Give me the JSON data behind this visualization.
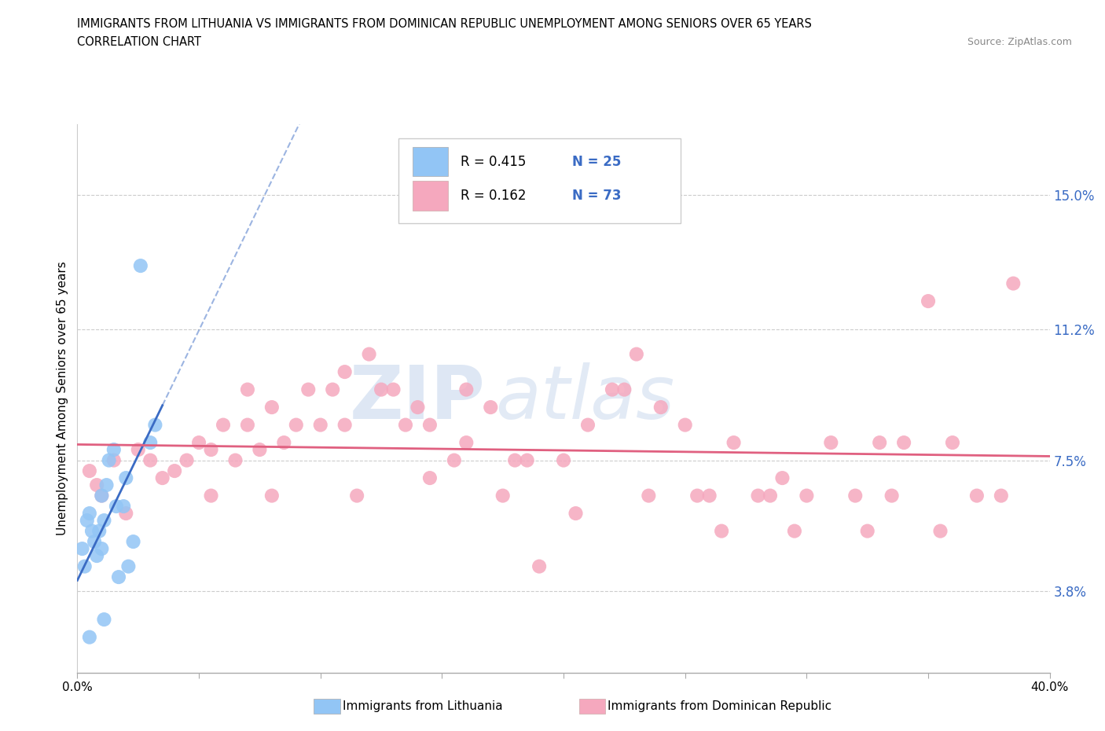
{
  "title_line1": "IMMIGRANTS FROM LITHUANIA VS IMMIGRANTS FROM DOMINICAN REPUBLIC UNEMPLOYMENT AMONG SENIORS OVER 65 YEARS",
  "title_line2": "CORRELATION CHART",
  "source": "Source: ZipAtlas.com",
  "ylabel": "Unemployment Among Seniors over 65 years",
  "ytick_values": [
    3.8,
    7.5,
    11.2,
    15.0
  ],
  "xlim": [
    0.0,
    40.0
  ],
  "ylim": [
    1.5,
    17.0
  ],
  "legend_blue_label": "Immigrants from Lithuania",
  "legend_pink_label": "Immigrants from Dominican Republic",
  "blue_color": "#92c5f5",
  "pink_color": "#f5a8be",
  "blue_line_color": "#3a6bc4",
  "pink_line_color": "#e06080",
  "watermark_zip": "ZIP",
  "watermark_atlas": "atlas",
  "blue_x": [
    0.2,
    0.3,
    0.4,
    0.5,
    0.6,
    0.7,
    0.8,
    0.9,
    1.0,
    1.0,
    1.1,
    1.2,
    1.3,
    1.5,
    1.6,
    1.7,
    1.9,
    2.0,
    2.1,
    2.3,
    2.6,
    3.0,
    3.2,
    0.5,
    1.1
  ],
  "blue_y": [
    5.0,
    4.5,
    5.8,
    6.0,
    5.5,
    5.2,
    4.8,
    5.5,
    6.5,
    5.0,
    5.8,
    6.8,
    7.5,
    7.8,
    6.2,
    4.2,
    6.2,
    7.0,
    4.5,
    5.2,
    13.0,
    8.0,
    8.5,
    2.5,
    3.0
  ],
  "pink_x": [
    0.5,
    1.0,
    1.5,
    2.5,
    3.0,
    3.5,
    4.0,
    4.5,
    5.0,
    5.5,
    6.0,
    6.5,
    7.0,
    7.0,
    7.5,
    8.0,
    8.5,
    9.0,
    9.5,
    10.0,
    10.5,
    11.0,
    11.0,
    12.0,
    12.5,
    13.0,
    13.5,
    14.0,
    14.5,
    15.5,
    16.0,
    16.0,
    17.0,
    18.0,
    18.5,
    19.0,
    20.0,
    21.0,
    22.0,
    22.5,
    23.0,
    24.0,
    25.0,
    25.5,
    26.0,
    27.0,
    28.0,
    28.5,
    29.0,
    30.0,
    31.0,
    32.0,
    33.0,
    33.5,
    34.0,
    35.0,
    36.0,
    37.0,
    38.0,
    38.5,
    0.8,
    2.0,
    5.5,
    8.0,
    11.5,
    14.5,
    17.5,
    20.5,
    23.5,
    26.5,
    29.5,
    32.5,
    35.5
  ],
  "pink_y": [
    7.2,
    6.5,
    7.5,
    7.8,
    7.5,
    7.0,
    7.2,
    7.5,
    8.0,
    7.8,
    8.5,
    7.5,
    8.5,
    9.5,
    7.8,
    9.0,
    8.0,
    8.5,
    9.5,
    8.5,
    9.5,
    10.0,
    8.5,
    10.5,
    9.5,
    9.5,
    8.5,
    9.0,
    8.5,
    7.5,
    8.0,
    9.5,
    9.0,
    7.5,
    7.5,
    4.5,
    7.5,
    8.5,
    9.5,
    9.5,
    10.5,
    9.0,
    8.5,
    6.5,
    6.5,
    8.0,
    6.5,
    6.5,
    7.0,
    6.5,
    8.0,
    6.5,
    8.0,
    6.5,
    8.0,
    12.0,
    8.0,
    6.5,
    6.5,
    12.5,
    6.8,
    6.0,
    6.5,
    6.5,
    6.5,
    7.0,
    6.5,
    6.0,
    6.5,
    5.5,
    5.5,
    5.5,
    5.5
  ]
}
